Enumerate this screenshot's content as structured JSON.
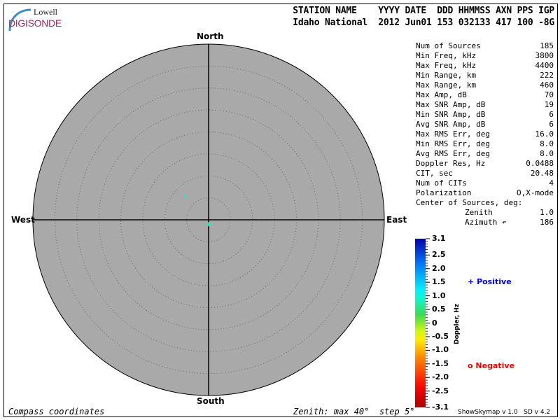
{
  "logo": {
    "line1": "Lowell",
    "line2": "DIGISONDE"
  },
  "header": {
    "labels": "STATION NAME    YYYY DATE  DDD HHMMSS AXN PPS IGP",
    "values": "Idaho National  2012 Jun01 153 032133 417 100 -8G"
  },
  "stats": [
    {
      "label": "Num of Sources",
      "value": "185"
    },
    {
      "label": "Min Freq, kHz",
      "value": "3800"
    },
    {
      "label": "Max Freq, kHz",
      "value": "4400"
    },
    {
      "label": "Min Range, km",
      "value": "222"
    },
    {
      "label": "Max Range, km",
      "value": "460"
    },
    {
      "label": "Max Amp, dB",
      "value": "70"
    },
    {
      "label": "Max SNR Amp, dB",
      "value": "19"
    },
    {
      "label": "Min SNR Amp, dB",
      "value": "6"
    },
    {
      "label": "Avg SNR Amp, dB",
      "value": "6"
    },
    {
      "label": "Max RMS Err, deg",
      "value": "16.0"
    },
    {
      "label": "Min RMS Err, deg",
      "value": "8.0"
    },
    {
      "label": "Avg RMS Err, deg",
      "value": "8.0"
    },
    {
      "label": "Doppler Res, Hz",
      "value": "0.0488"
    },
    {
      "label": "CIT, sec",
      "value": "20.48"
    },
    {
      "label": "Num of CITs",
      "value": "4"
    },
    {
      "label": "Polarization",
      "value": "O,X-mode"
    },
    {
      "label": "Center of Sources, deg:",
      "value": ""
    },
    {
      "label": "Zenith",
      "value": "1.0"
    },
    {
      "label": "Azimuth ↶",
      "value": "186"
    }
  ],
  "compass": {
    "north": "North",
    "south": "South",
    "east": "East",
    "west": "West"
  },
  "skymap": {
    "zenith_max_deg": 40,
    "zenith_step_deg": 5,
    "background": "#a9a9a9",
    "sources": [
      {
        "zenith": 7.5,
        "azimuth": 314,
        "doppler": 0.8,
        "marker": "+"
      },
      {
        "zenith": 1.0,
        "azimuth": 180,
        "doppler": 0.8,
        "marker": "+"
      }
    ]
  },
  "colorbar": {
    "title": "Doppler, Hz",
    "ticks": [
      "3.1",
      "2.5",
      "2.0",
      "1.5",
      "1.0",
      "0.5",
      "0",
      "-0.5",
      "-1.0",
      "-1.5",
      "-2.0",
      "-2.5",
      "-3.1"
    ],
    "tick_values": [
      3.1,
      2.5,
      2.0,
      1.5,
      1.0,
      0.5,
      0,
      -0.5,
      -1.0,
      -1.5,
      -2.0,
      -2.5,
      -3.1
    ],
    "range": [
      -3.1,
      3.1
    ]
  },
  "legend": {
    "positive": {
      "symbol": "+",
      "label": "Positive",
      "color": "#0000ee"
    },
    "negative": {
      "symbol": "o",
      "label": "Negative",
      "color": "#ee0000"
    }
  },
  "footer": {
    "left": "Compass coordinates",
    "right": "Zenith: max 40°  step 5°",
    "version": "ShowSkymap v 1.0   SD v 4.2"
  }
}
